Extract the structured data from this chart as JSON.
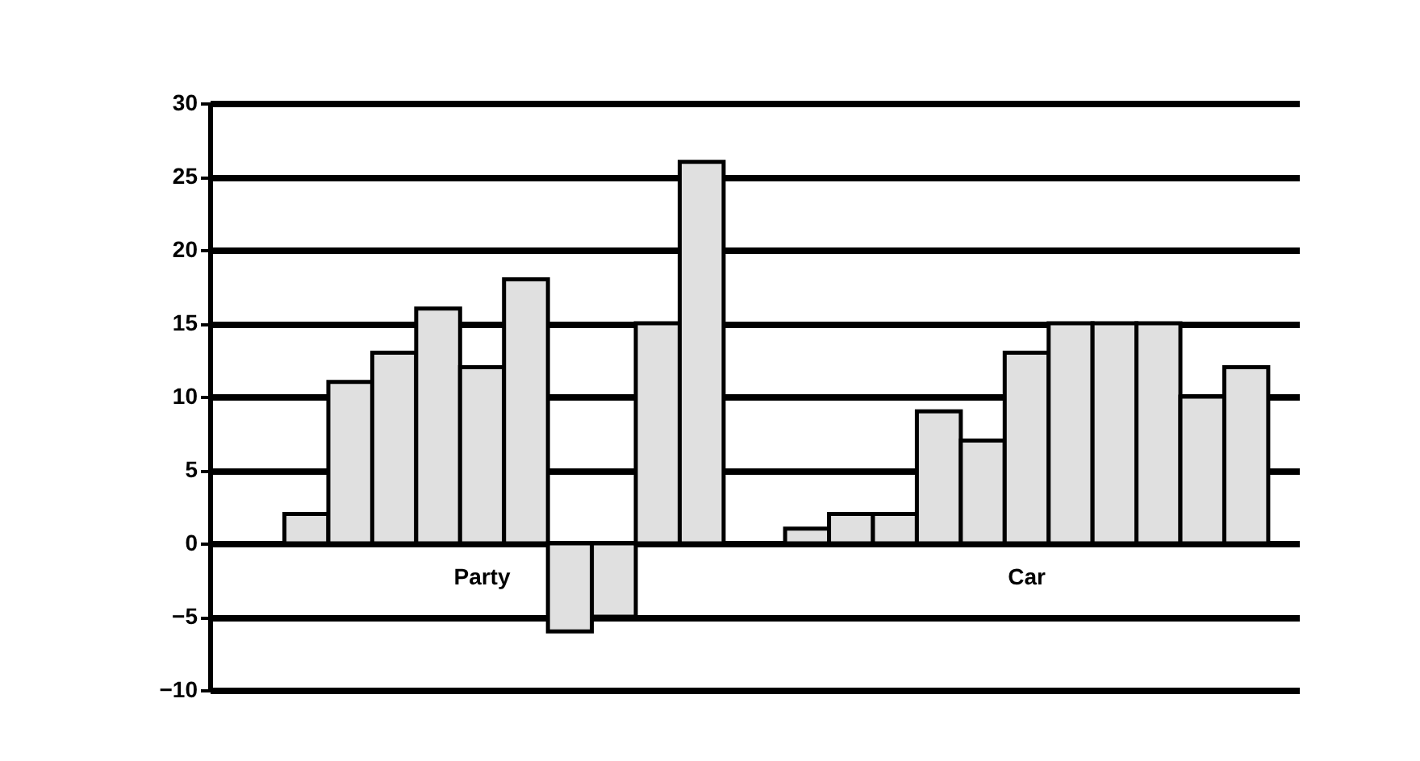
{
  "chart_data": {
    "type": "bar",
    "categories": [
      "Party",
      "Car"
    ],
    "series": [
      {
        "color": "#e0e0e0",
        "values": [
          null,
          1
        ]
      },
      {
        "color": "#e0e0e0",
        "values": [
          2,
          2
        ]
      },
      {
        "color": "#e0e0e0",
        "values": [
          11,
          2
        ]
      },
      {
        "color": "#e0e0e0",
        "values": [
          13,
          9
        ]
      },
      {
        "color": "#e0e0e0",
        "values": [
          16,
          7
        ]
      },
      {
        "color": "#e0e0e0",
        "values": [
          12,
          13
        ]
      },
      {
        "color": "#e0e0e0",
        "values": [
          18,
          15
        ]
      },
      {
        "color": "#e0e0e0",
        "values": [
          -6,
          15
        ]
      },
      {
        "color": "#e0e0e0",
        "values": [
          -5,
          15
        ]
      },
      {
        "color": "#e0e0e0",
        "values": [
          15,
          10
        ]
      },
      {
        "color": "#e0e0e0",
        "values": [
          26,
          12
        ]
      }
    ],
    "ylim": [
      -10,
      30
    ],
    "yticks": [
      -10,
      -5,
      0,
      5,
      10,
      15,
      20,
      25,
      30
    ],
    "grid": true
  }
}
